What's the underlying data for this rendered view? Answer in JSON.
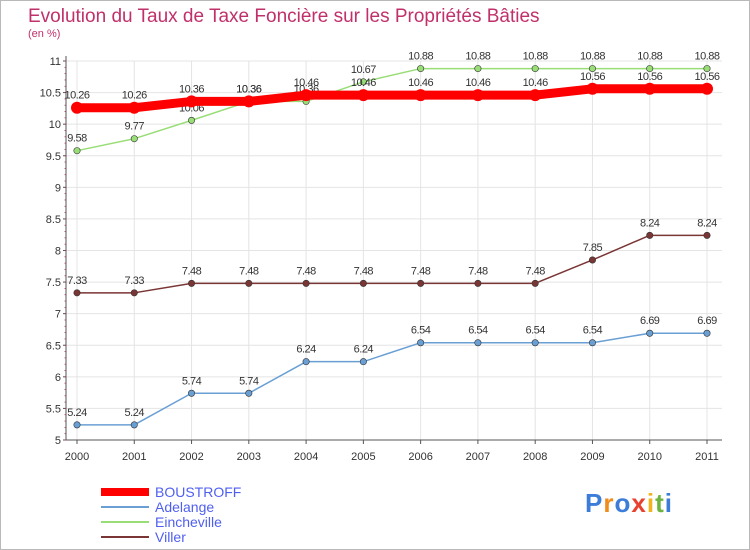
{
  "chart_data": {
    "type": "line",
    "title": "Evolution du Taux de Taxe Foncière sur les Propriétés Bâties",
    "subtitle": "(en %)",
    "x": [
      "2000",
      "2001",
      "2002",
      "2003",
      "2004",
      "2005",
      "2006",
      "2007",
      "2008",
      "2009",
      "2010",
      "2011"
    ],
    "ylim": [
      5,
      11
    ],
    "yticks": [
      "5",
      "5.5",
      "6",
      "6.5",
      "7",
      "7.5",
      "8",
      "8.5",
      "9",
      "9.5",
      "10",
      "10.5",
      "11"
    ],
    "grid": true,
    "legend_position": "bottom-left",
    "series": [
      {
        "name": "BOUSTROFF",
        "color": "#ff0000",
        "values": [
          10.26,
          10.26,
          10.36,
          10.36,
          10.46,
          10.46,
          10.46,
          10.46,
          10.46,
          10.56,
          10.56,
          10.56
        ]
      },
      {
        "name": "Adelange",
        "color": "#6a9fd4",
        "values": [
          5.24,
          5.24,
          5.74,
          5.74,
          6.24,
          6.24,
          6.54,
          6.54,
          6.54,
          6.54,
          6.69,
          6.69
        ]
      },
      {
        "name": "Eincheville",
        "color": "#99dd77",
        "values": [
          9.58,
          9.77,
          10.06,
          10.36,
          10.36,
          10.67,
          10.88,
          10.88,
          10.88,
          10.88,
          10.88,
          10.88
        ]
      },
      {
        "name": "Viller",
        "color": "#7a3535",
        "values": [
          7.33,
          7.33,
          7.48,
          7.48,
          7.48,
          7.48,
          7.48,
          7.48,
          7.48,
          7.85,
          8.24,
          8.24
        ]
      }
    ]
  },
  "logo": {
    "letters": [
      "P",
      "r",
      "o",
      "x",
      "i",
      "t",
      "i"
    ],
    "colors": [
      "#3b7dd8",
      "#f08c1e",
      "#3b7dd8",
      "#e8412e",
      "#f0b41e",
      "#6cb33f",
      "#3b7dd8"
    ]
  }
}
